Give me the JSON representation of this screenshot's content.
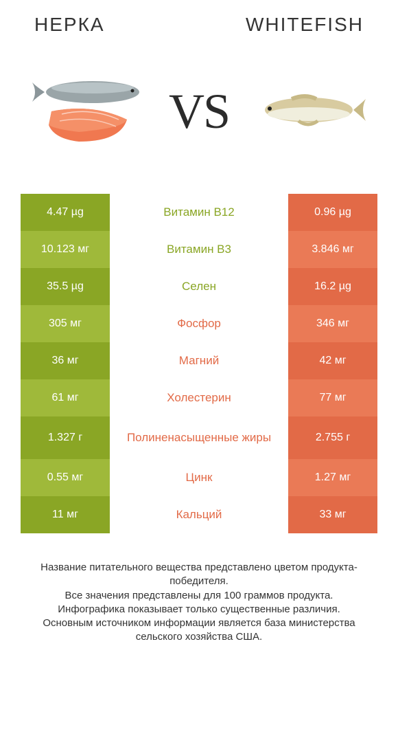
{
  "colors": {
    "left_dark": "#8aa625",
    "left_light": "#9fb93a",
    "right_dark": "#e26a47",
    "right_light": "#ea7a56",
    "label_left": "#8aa625",
    "label_right": "#e26a47",
    "text_white": "#ffffff",
    "bg": "#ffffff"
  },
  "header": {
    "left_title": "НЕРКА",
    "right_title": "WHITEFISH",
    "vs": "VS"
  },
  "rows": [
    {
      "left": "4.47 µg",
      "label": "Витамин B12",
      "right": "0.96 µg",
      "winner": "left"
    },
    {
      "left": "10.123 мг",
      "label": "Витамин B3",
      "right": "3.846 мг",
      "winner": "left"
    },
    {
      "left": "35.5 µg",
      "label": "Селен",
      "right": "16.2 µg",
      "winner": "left"
    },
    {
      "left": "305 мг",
      "label": "Фосфор",
      "right": "346 мг",
      "winner": "right"
    },
    {
      "left": "36 мг",
      "label": "Магний",
      "right": "42 мг",
      "winner": "right"
    },
    {
      "left": "61 мг",
      "label": "Холестерин",
      "right": "77 мг",
      "winner": "right"
    },
    {
      "left": "1.327 г",
      "label": "Полиненасыщенные жиры",
      "right": "2.755 г",
      "winner": "right",
      "tall": true
    },
    {
      "left": "0.55 мг",
      "label": "Цинк",
      "right": "1.27 мг",
      "winner": "right"
    },
    {
      "left": "11 мг",
      "label": "Кальций",
      "right": "33 мг",
      "winner": "right"
    }
  ],
  "footer_lines": [
    "Название питательного вещества представлено цветом продукта-победителя.",
    "Все значения представлены для 100 граммов продукта.",
    "Инфографика показывает только существенные различия.",
    "Основным источником информации является база министерства сельского хозяйства США."
  ]
}
